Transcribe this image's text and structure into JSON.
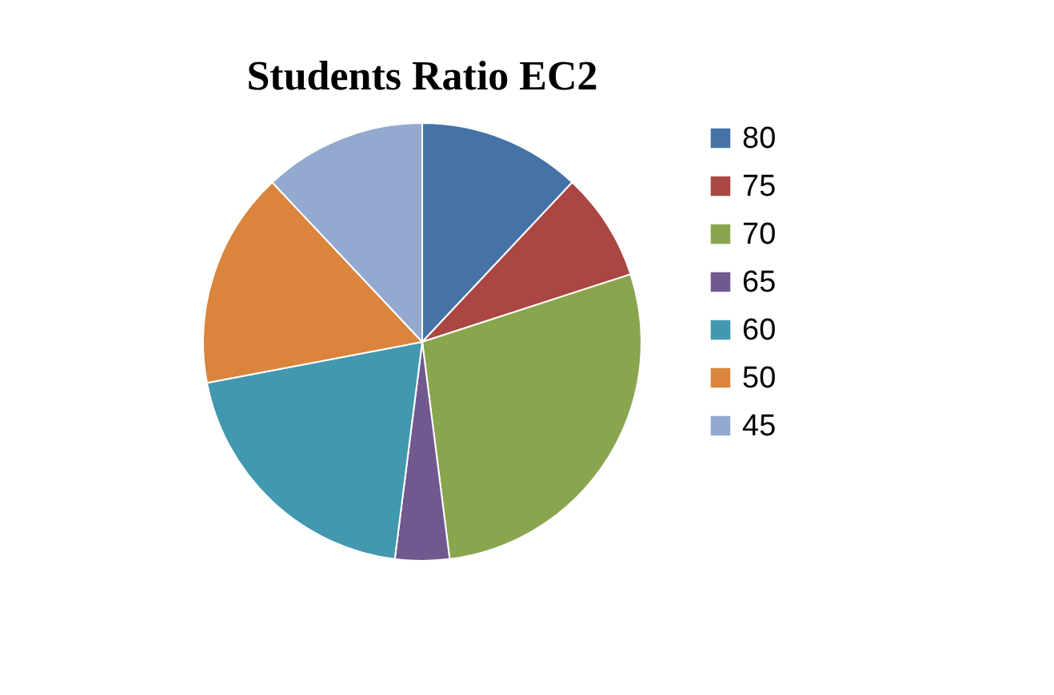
{
  "chart_data": {
    "type": "pie",
    "title": "Students Ratio EC2",
    "categories": [
      "80",
      "75",
      "70",
      "65",
      "60",
      "50",
      "45"
    ],
    "values": [
      12,
      8,
      28,
      4,
      20,
      16,
      12
    ],
    "colors": [
      "#4572a7",
      "#aa4643",
      "#89a54e",
      "#71588f",
      "#4198af",
      "#db843d",
      "#93a9cf"
    ],
    "legend": "right"
  }
}
